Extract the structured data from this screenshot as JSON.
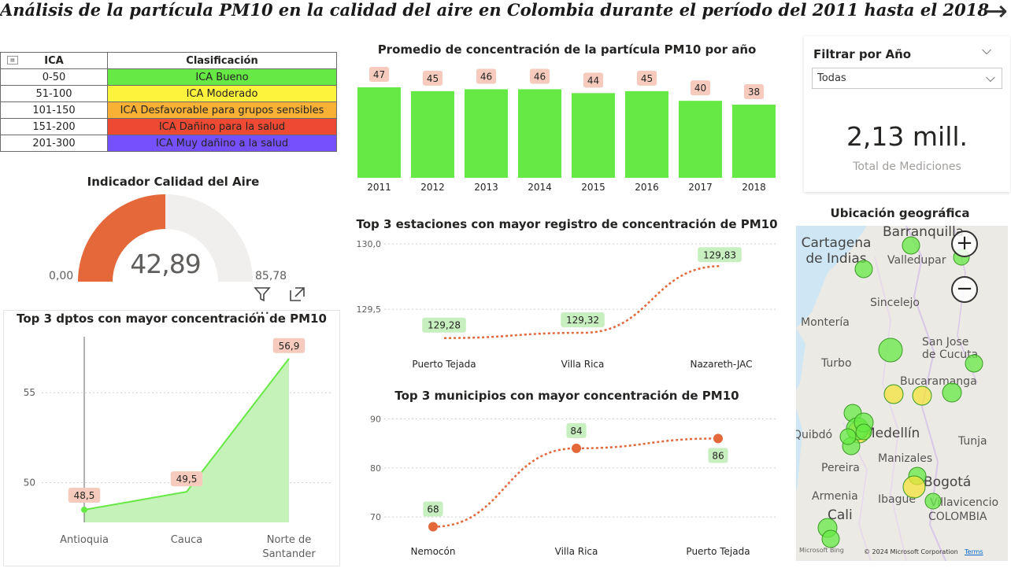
{
  "header": {
    "title": "Análisis de la partícula PM10 en la calidad del aire en Colombia durante el período del 2011 hasta el 2018",
    "next_icon": "arrow-right-icon"
  },
  "ica_table": {
    "headers": [
      "ICA",
      "Clasificación"
    ],
    "rows": [
      {
        "range": "0-50",
        "label": "ICA Bueno",
        "color": "#66e944"
      },
      {
        "range": "51-100",
        "label": "ICA Moderado",
        "color": "#fdf23c"
      },
      {
        "range": "101-150",
        "label": "ICA Desfavorable para grupos sensibles",
        "color": "#f8b135"
      },
      {
        "range": "151-200",
        "label": "ICA Dañino para la salud",
        "color": "#ee4933"
      },
      {
        "range": "201-300",
        "label": "ICA Muy dañino a la salud",
        "color": "#7451fd"
      }
    ]
  },
  "gauge": {
    "title": "Indicador Calidad del Aire",
    "value": "42,89",
    "min": "0,00",
    "max": "85,78",
    "fill_fraction": 0.5,
    "fill_color": "#e4683a",
    "track_color": "#f1efed"
  },
  "visual_header_icons": [
    "filter-icon",
    "focus-mode-icon",
    "more-options-icon"
  ],
  "filter": {
    "title": "Filtrar por Año",
    "selected": "Todas"
  },
  "kpi": {
    "value": "2,13 mill.",
    "label": "Total de Mediciones"
  },
  "map": {
    "title": "Ubicación geográfica",
    "cities": [
      "Cartagena de Indias",
      "Barranquilla",
      "Valledupar",
      "Sincelejo",
      "Montería",
      "San Jose de Cucuta",
      "Turbo",
      "Bucaramanga",
      "Medellín",
      "Quibdó",
      "Tunja",
      "Manizales",
      "Pereira",
      "Bogotá",
      "Armenia",
      "Ibague",
      "Villavicencio",
      "Cali",
      "COLOMBIA"
    ],
    "attribution": "© 2024 Microsoft Corporation",
    "terms": "Terms",
    "logo": "Microsoft Bing"
  },
  "chart_data": [
    {
      "type": "bar",
      "title": "Promedio de concentración de la partícula PM10 por año",
      "categories": [
        "2011",
        "2012",
        "2013",
        "2014",
        "2015",
        "2016",
        "2017",
        "2018"
      ],
      "values": [
        47,
        45,
        46,
        46,
        44,
        45,
        40,
        38
      ],
      "color": "#66e944",
      "label_bg": "#f6cbbd"
    },
    {
      "type": "line",
      "title": "Top 3 estaciones con mayor registro de concentración de PM10",
      "categories": [
        "Puerto Tejada",
        "Villa Rica",
        "Nazareth-JAC"
      ],
      "values": [
        129.28,
        129.32,
        129.83
      ],
      "data_labels": [
        "129,28",
        "129,32",
        "129,83"
      ],
      "y_ticks": [
        "130,0",
        "129,5"
      ],
      "ylim": [
        129.2,
        130.0
      ],
      "line_color": "#e4683a",
      "label_bg": "#c7efc0"
    },
    {
      "type": "line",
      "title": "Top 3 municipios con mayor concentración de PM10",
      "categories": [
        "Nemocón",
        "Villa Rica",
        "Puerto Tejada"
      ],
      "values": [
        68,
        84,
        86
      ],
      "data_labels": [
        "68",
        "84",
        "86"
      ],
      "y_ticks": [
        "90",
        "80",
        "70"
      ],
      "ylim": [
        66,
        92
      ],
      "line_color": "#e4683a",
      "label_bg": "#c7efc0"
    },
    {
      "type": "area",
      "title": "Top 3 dptos con mayor concentración de PM10",
      "categories": [
        "Antioquia",
        "Cauca",
        "Norte de Santander"
      ],
      "values": [
        48.5,
        49.5,
        56.9
      ],
      "data_labels": [
        "48,5",
        "49,5",
        "56,9"
      ],
      "y_ticks": [
        "55",
        "50"
      ],
      "ylim": [
        47.8,
        58.2
      ],
      "fill_color": "#c4f2b8",
      "line_color": "#66e944",
      "label_bg": "#f6cbbd"
    }
  ]
}
